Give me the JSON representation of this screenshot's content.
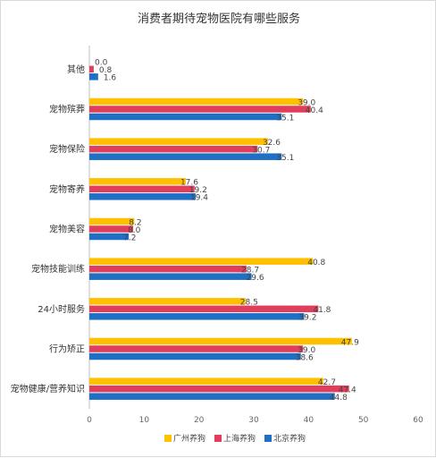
{
  "chart_data": {
    "type": "bar",
    "orientation": "horizontal",
    "title": "消费者期待宠物医院有哪些服务",
    "categories": [
      "其他",
      "宠物殡葬",
      "宠物保险",
      "宠物寄养",
      "宠物美容",
      "宠物技能训练",
      "24小时服务",
      "行为矫正",
      "宠物健康/营养知识"
    ],
    "series": [
      {
        "name": "广州养狗",
        "color": "#ffc000",
        "values": [
          0.0,
          39.0,
          32.6,
          17.6,
          8.2,
          40.8,
          28.5,
          47.9,
          42.7
        ]
      },
      {
        "name": "上海养狗",
        "color": "#e03e5a",
        "values": [
          0.8,
          40.4,
          30.7,
          19.2,
          8.0,
          28.7,
          41.8,
          39.0,
          47.4
        ]
      },
      {
        "name": "北京养狗",
        "color": "#1f6fc5",
        "values": [
          1.6,
          35.1,
          35.1,
          19.4,
          7.2,
          29.6,
          39.2,
          38.6,
          44.8
        ]
      }
    ],
    "data_labels": [
      [
        "0.0",
        "39.0",
        "32.6",
        "17.6",
        "8.2",
        "40.8",
        "28.5",
        "47.9",
        "42.7"
      ],
      [
        "0.8",
        "40.4",
        "30.7",
        "19.2",
        "8.0",
        "28.7",
        "41.8",
        "39.0",
        "47.4"
      ],
      [
        "1.6",
        "35.1",
        "35.1",
        "19.4",
        "7.2",
        "29.6",
        "39.2",
        "38.6",
        "44.8"
      ]
    ],
    "xlim": [
      0,
      60
    ],
    "xticks": [
      "0",
      "10",
      "20",
      "30",
      "40",
      "50",
      "60"
    ],
    "grid": false,
    "legend": "bottom"
  }
}
